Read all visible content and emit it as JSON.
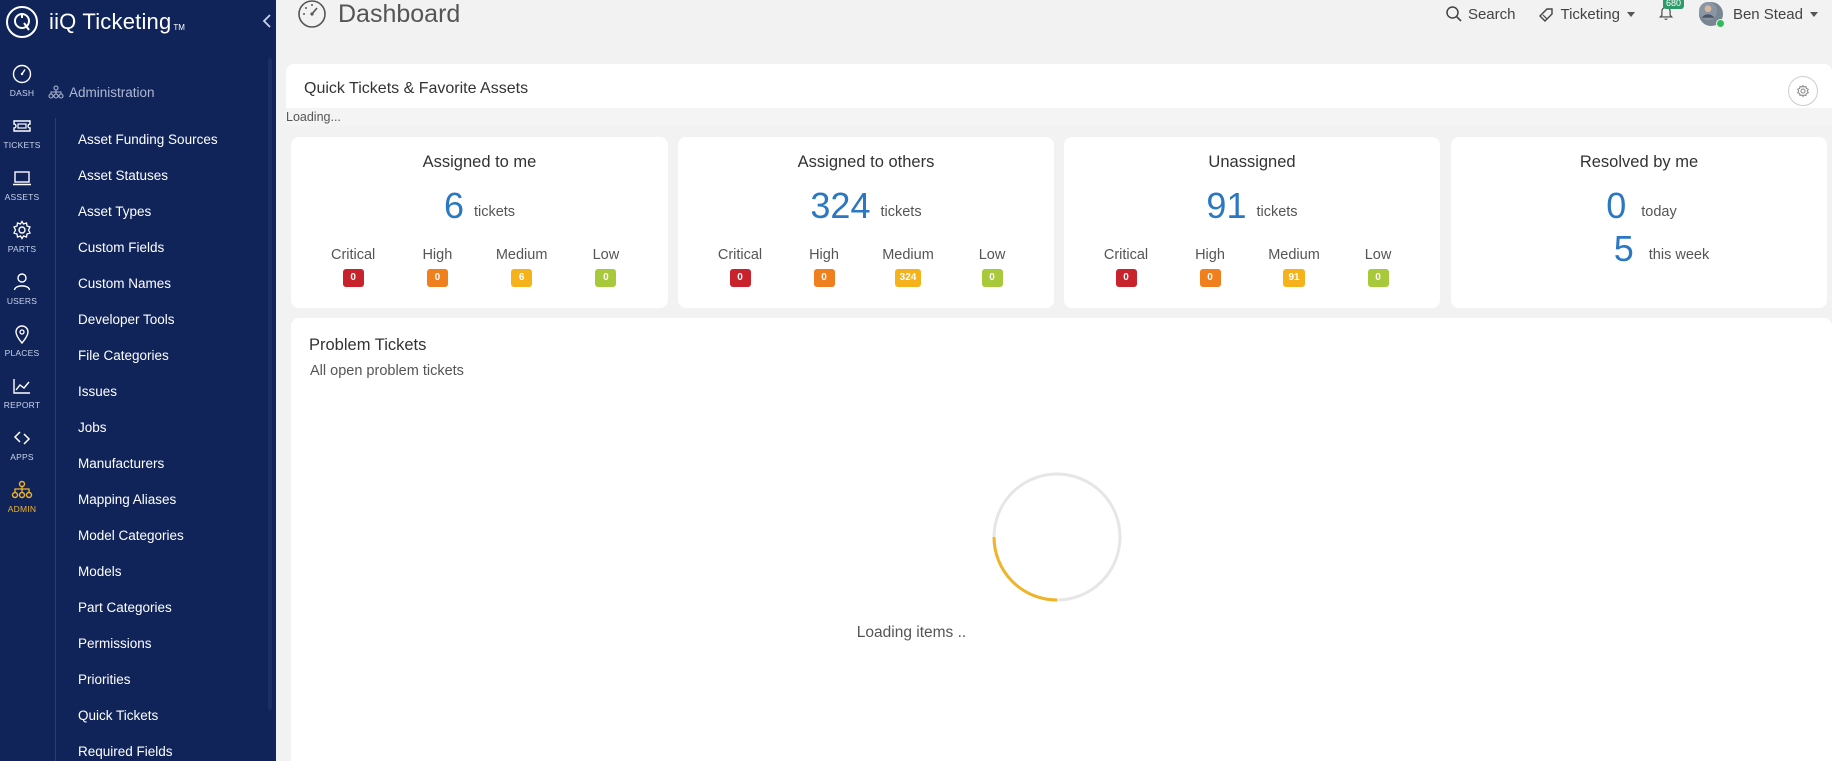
{
  "app": {
    "brand_name": "iiQ Ticketing",
    "brand_tm": "TM",
    "page_title": "Dashboard"
  },
  "colors": {
    "sidebar_bg": "#10245a",
    "accent_blue": "#2a78c2",
    "active_gold": "#f0b429",
    "critical": "#c8232c",
    "high": "#f07f1e",
    "medium": "#f5b21b",
    "low": "#a9c93c"
  },
  "rail": [
    {
      "label": "DASH",
      "icon": "speedometer-icon"
    },
    {
      "label": "TICKETS",
      "icon": "ticket-icon"
    },
    {
      "label": "ASSETS",
      "icon": "laptop-icon"
    },
    {
      "label": "PARTS",
      "icon": "gear-icon"
    },
    {
      "label": "USERS",
      "icon": "user-icon"
    },
    {
      "label": "PLACES",
      "icon": "map-pin-icon"
    },
    {
      "label": "REPORT",
      "icon": "chart-icon"
    },
    {
      "label": "APPS",
      "icon": "diamond-arrows-icon"
    },
    {
      "label": "ADMIN",
      "icon": "org-chart-icon",
      "active": true
    }
  ],
  "breadcrumb": "Administration",
  "admin_menu": [
    "Asset Funding Sources",
    "Asset Statuses",
    "Asset Types",
    "Custom Fields",
    "Custom Names",
    "Developer Tools",
    "File Categories",
    "Issues",
    "Jobs",
    "Manufacturers",
    "Mapping Aliases",
    "Model Categories",
    "Models",
    "Part Categories",
    "Permissions",
    "Priorities",
    "Quick Tickets",
    "Required Fields"
  ],
  "topnav": {
    "search": "Search",
    "ticketing": "Ticketing",
    "notifications_count": "680",
    "user_name": "Ben Stead"
  },
  "quick_tickets": {
    "title": "Quick Tickets & Favorite Assets",
    "loading": "Loading..."
  },
  "priority_labels": {
    "critical": "Critical",
    "high": "High",
    "medium": "Medium",
    "low": "Low"
  },
  "cards": {
    "assigned_to_me": {
      "title": "Assigned to me",
      "count": "6",
      "unit": "tickets",
      "critical": "0",
      "high": "0",
      "medium": "6",
      "low": "0"
    },
    "assigned_to_others": {
      "title": "Assigned to others",
      "count": "324",
      "unit": "tickets",
      "critical": "0",
      "high": "0",
      "medium": "324",
      "low": "0"
    },
    "unassigned": {
      "title": "Unassigned",
      "count": "91",
      "unit": "tickets",
      "critical": "0",
      "high": "0",
      "medium": "91",
      "low": "0"
    },
    "resolved": {
      "title": "Resolved by me",
      "today_count": "0",
      "today_label": "today",
      "week_count": "5",
      "week_label": "this week"
    }
  },
  "problem_tickets": {
    "title": "Problem Tickets",
    "subtitle": "All open problem tickets",
    "loading": "Loading items .."
  }
}
